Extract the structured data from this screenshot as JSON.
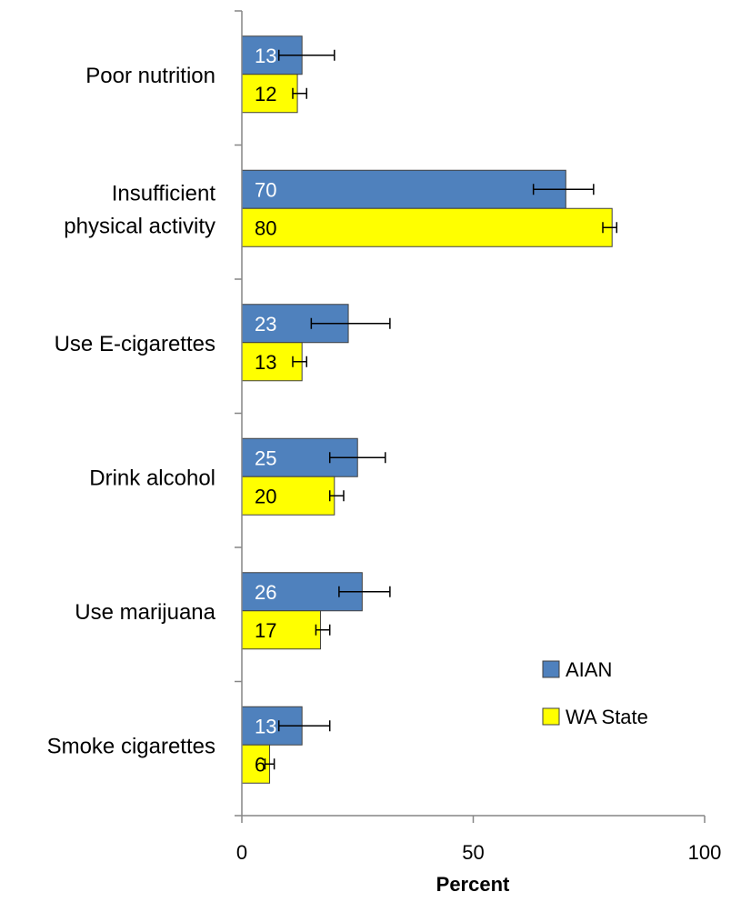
{
  "chart_data": {
    "type": "bar",
    "orientation": "horizontal",
    "categories": [
      "Poor nutrition",
      "Insufficient physical activity",
      "Use E-cigarettes",
      "Drink alcohol",
      "Use marijuana",
      "Smoke cigarettes"
    ],
    "category_lines": [
      [
        "Poor nutrition"
      ],
      [
        "Insufficient",
        "physical activity"
      ],
      [
        "Use E-cigarettes"
      ],
      [
        "Drink alcohol"
      ],
      [
        "Use marijuana"
      ],
      [
        "Smoke cigarettes"
      ]
    ],
    "series": [
      {
        "name": "AIAN",
        "color": "#4f81bd",
        "values": [
          13,
          70,
          23,
          25,
          26,
          13
        ],
        "error_low": [
          8,
          63,
          15,
          19,
          21,
          8
        ],
        "error_high": [
          20,
          76,
          32,
          31,
          32,
          19
        ]
      },
      {
        "name": "WA State",
        "color": "#ffff00",
        "values": [
          12,
          80,
          13,
          20,
          17,
          6
        ],
        "error_low": [
          11,
          78,
          11,
          19,
          16,
          5
        ],
        "error_high": [
          14,
          81,
          14,
          22,
          19,
          7
        ]
      }
    ],
    "xlabel": "Percent",
    "xlim": [
      0,
      100
    ],
    "xticks": [
      0,
      50,
      100
    ],
    "legend_position": "bottom-right",
    "grid": false
  }
}
